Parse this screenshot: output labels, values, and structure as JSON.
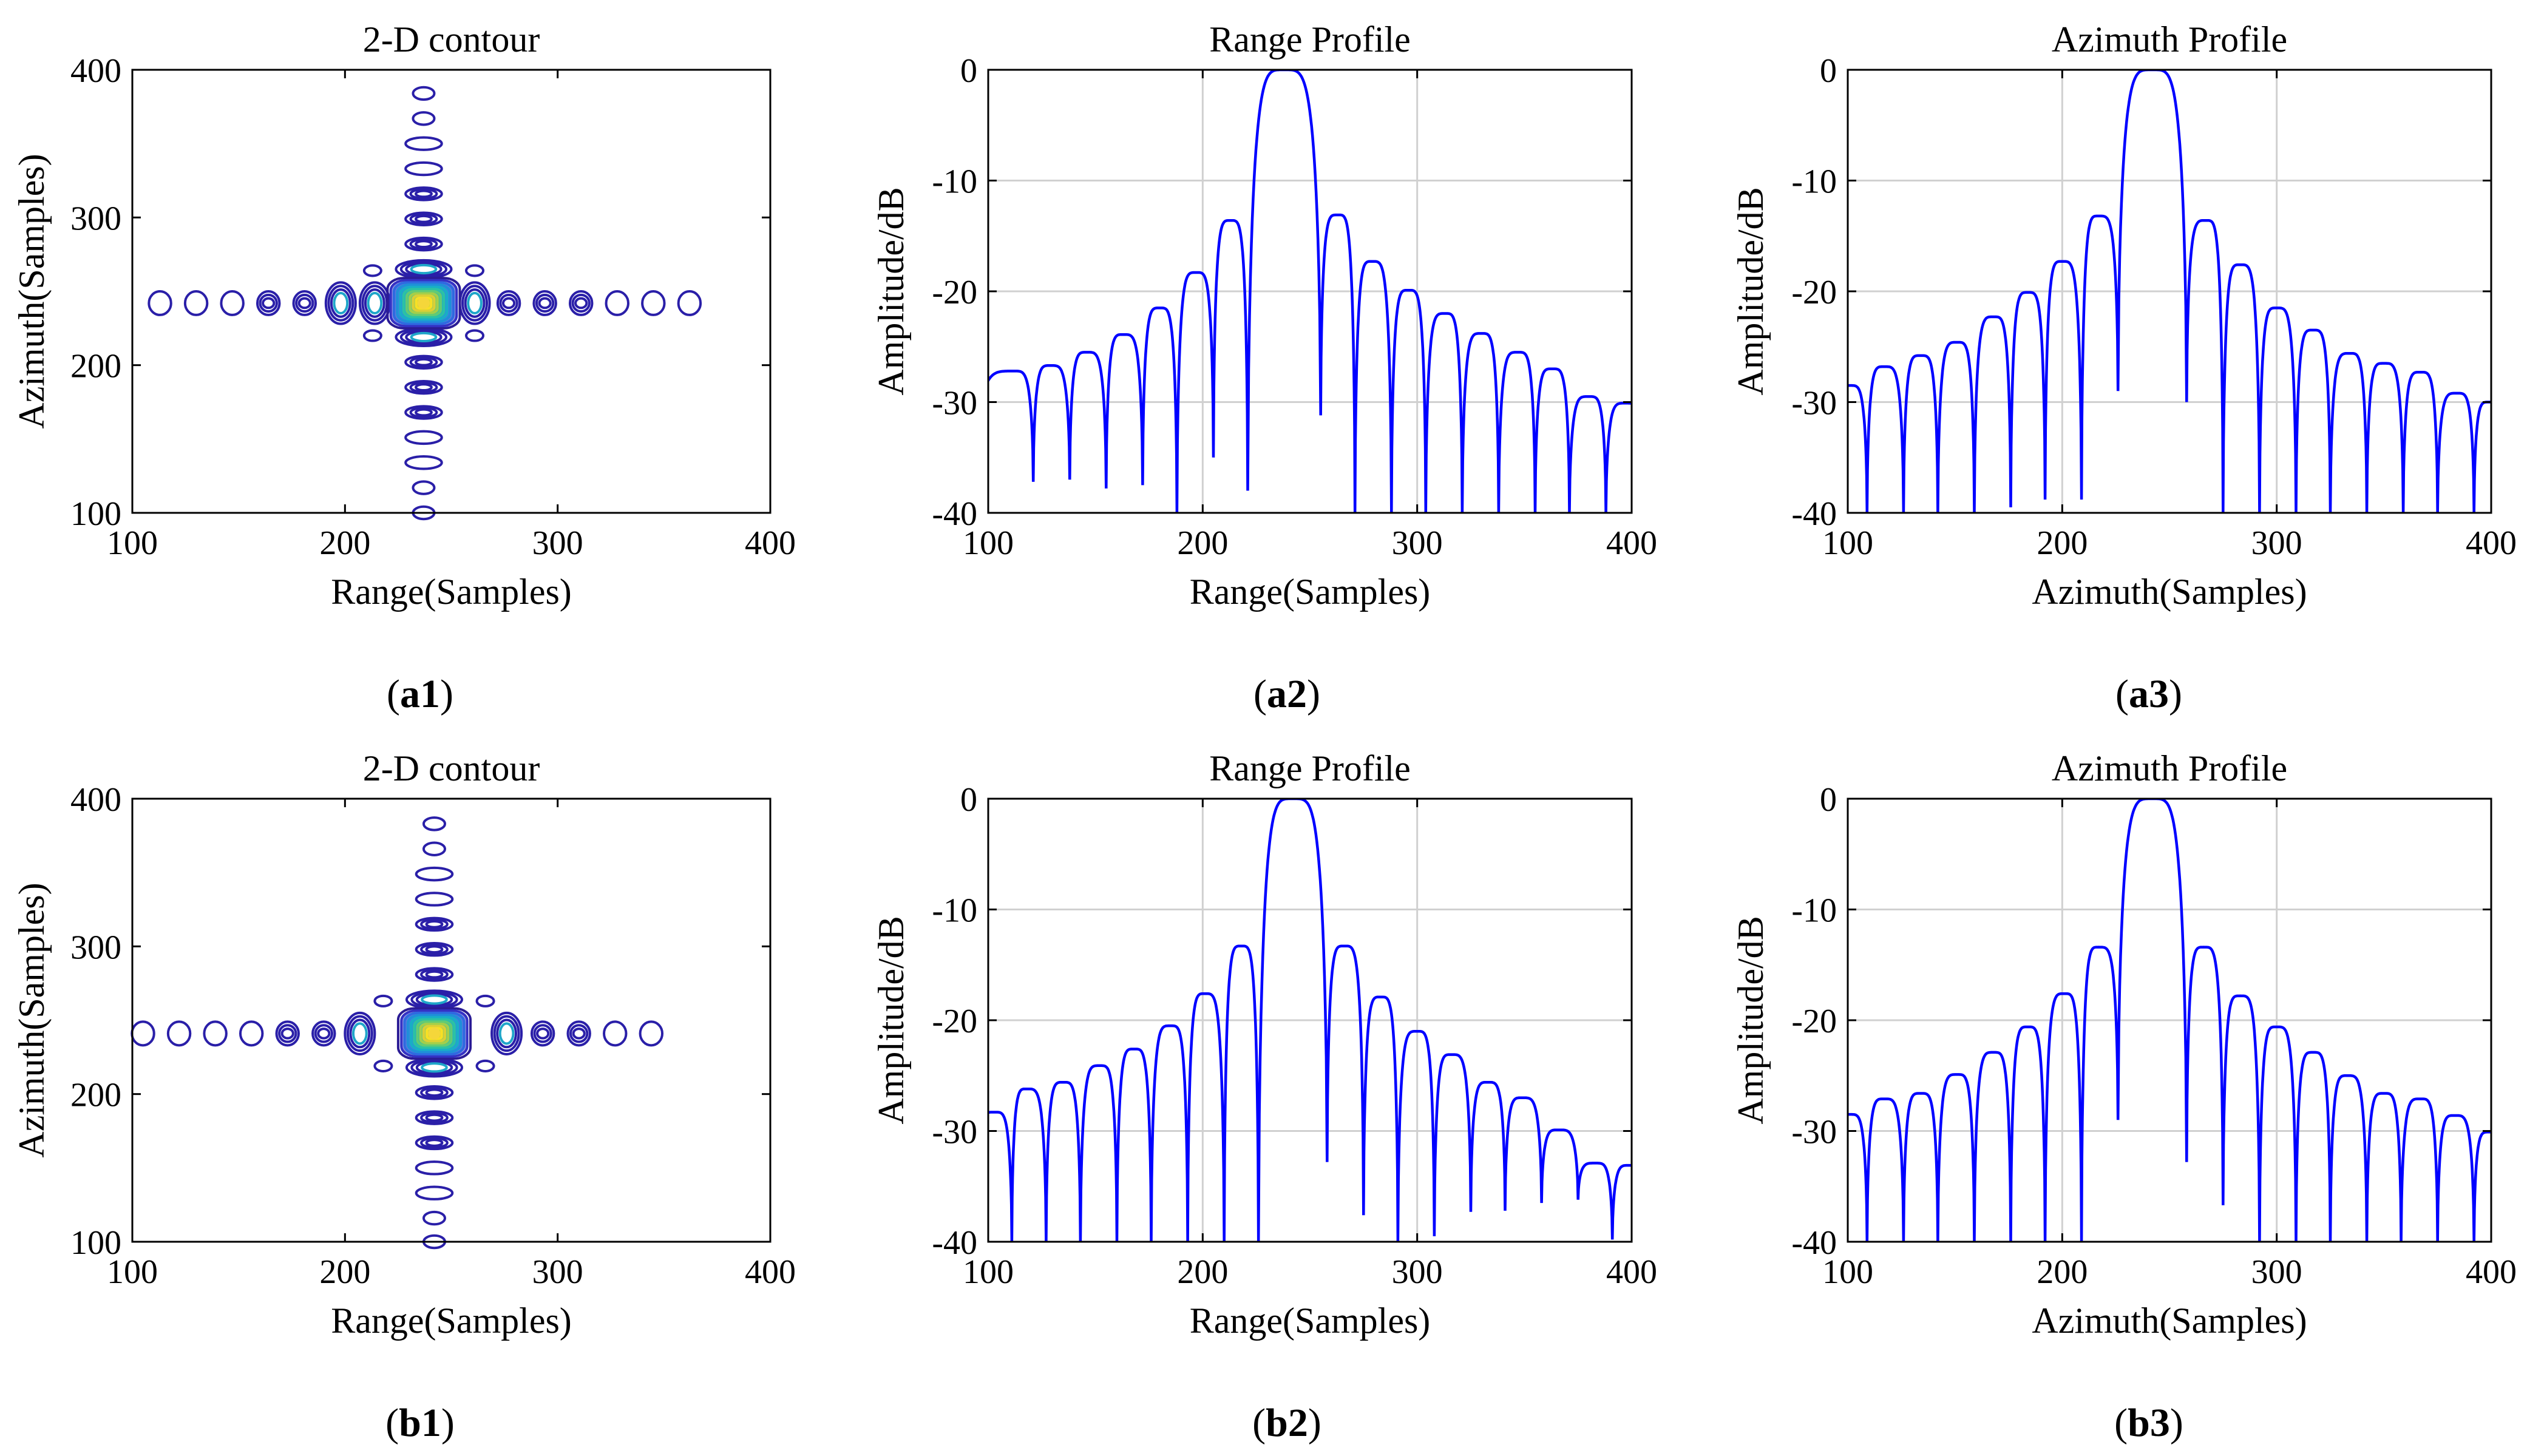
{
  "figure": {
    "panel_labels": [
      {
        "open": "(",
        "id": "a1",
        "close": ")"
      },
      {
        "open": "(",
        "id": "a2",
        "close": ")"
      },
      {
        "open": "(",
        "id": "a3",
        "close": ")"
      },
      {
        "open": "(",
        "id": "b1",
        "close": ")"
      },
      {
        "open": "(",
        "id": "b2",
        "close": ")"
      },
      {
        "open": "(",
        "id": "b3",
        "close": ")"
      }
    ]
  },
  "colors": {
    "line": "#0000ff",
    "contour_outer": "#2a1fa8",
    "contour_mid": "#1fa6c9",
    "contour_inner": "#5ec962",
    "contour_peak": "#f5d63a",
    "grid": "#d0d0d0",
    "axis": "#000000"
  },
  "chart_data": [
    {
      "id": "a1",
      "type": "contour",
      "title": "2-D contour",
      "xlabel": "Range(Samples)",
      "ylabel": "Azimuth(Samples)",
      "xlim": [
        100,
        400
      ],
      "ylim": [
        100,
        400
      ],
      "xticks": [
        100,
        200,
        300,
        400
      ],
      "yticks": [
        100,
        200,
        300,
        400
      ],
      "grid": false,
      "center": [
        237,
        242
      ],
      "range_lobes": [
        113,
        130,
        147,
        164,
        181,
        198,
        214,
        261,
        277,
        294,
        311,
        328,
        345,
        362
      ],
      "azimuth_lobes": [
        384,
        367,
        350,
        333,
        316,
        299,
        282,
        265,
        219,
        202,
        185,
        168,
        151,
        134,
        117,
        100
      ]
    },
    {
      "id": "a2",
      "type": "line",
      "title": "Range Profile",
      "xlabel": "Range(Samples)",
      "ylabel": "Amplitude/dB",
      "xlim": [
        100,
        400
      ],
      "ylim": [
        -40,
        0
      ],
      "xticks": [
        100,
        200,
        300,
        400
      ],
      "yticks": [
        0,
        -10,
        -20,
        -30,
        -40
      ],
      "grid": true,
      "main_lobe": {
        "center": 238,
        "nulls": [
          221,
          255
        ]
      },
      "side_lobes": [
        {
          "x": 112,
          "peak": -27.2
        },
        {
          "x": 129,
          "peak": -26.7
        },
        {
          "x": 146,
          "peak": -25.5
        },
        {
          "x": 163,
          "peak": -23.9
        },
        {
          "x": 180,
          "peak": -21.5
        },
        {
          "x": 197,
          "peak": -18.3
        },
        {
          "x": 213,
          "peak": -13.6
        },
        {
          "x": 263,
          "peak": -13.1
        },
        {
          "x": 279,
          "peak": -17.3
        },
        {
          "x": 296,
          "peak": -19.9
        },
        {
          "x": 313,
          "peak": -22.0
        },
        {
          "x": 330,
          "peak": -23.8
        },
        {
          "x": 347,
          "peak": -25.5
        },
        {
          "x": 363,
          "peak": -27.0
        },
        {
          "x": 380,
          "peak": -29.5
        },
        {
          "x": 397,
          "peak": -30.1
        }
      ],
      "nulls": [
        {
          "x": 121,
          "depth": -37.2
        },
        {
          "x": 138,
          "depth": -37.0
        },
        {
          "x": 155,
          "depth": -37.8
        },
        {
          "x": 172,
          "depth": -37.5
        },
        {
          "x": 188,
          "depth": -40
        },
        {
          "x": 205,
          "depth": -35.0
        },
        {
          "x": 221,
          "depth": -38.0
        },
        {
          "x": 255,
          "depth": -31.2
        },
        {
          "x": 271,
          "depth": -40
        },
        {
          "x": 288,
          "depth": -40
        },
        {
          "x": 304,
          "depth": -40
        },
        {
          "x": 321,
          "depth": -40
        },
        {
          "x": 338,
          "depth": -40
        },
        {
          "x": 355,
          "depth": -40
        },
        {
          "x": 371,
          "depth": -40
        },
        {
          "x": 388,
          "depth": -40
        }
      ],
      "series": [
        {
          "name": "Range Profile",
          "color": "#0000ff"
        }
      ]
    },
    {
      "id": "a3",
      "type": "line",
      "title": "Azimuth Profile",
      "xlabel": "Azimuth(Samples)",
      "ylabel": "Amplitude/dB",
      "xlim": [
        100,
        400
      ],
      "ylim": [
        -40,
        0
      ],
      "xticks": [
        100,
        200,
        300,
        400
      ],
      "yticks": [
        0,
        -10,
        -20,
        -30,
        -40
      ],
      "grid": true,
      "main_lobe": {
        "center": 242,
        "nulls": [
          226,
          258
        ]
      },
      "side_lobes": [
        {
          "x": 101,
          "peak": -28.5
        },
        {
          "x": 117,
          "peak": -26.8
        },
        {
          "x": 134,
          "peak": -25.8
        },
        {
          "x": 151,
          "peak": -24.6
        },
        {
          "x": 168,
          "peak": -22.3
        },
        {
          "x": 184,
          "peak": -20.1
        },
        {
          "x": 200,
          "peak": -17.3
        },
        {
          "x": 217,
          "peak": -13.2
        },
        {
          "x": 267,
          "peak": -13.6
        },
        {
          "x": 283,
          "peak": -17.6
        },
        {
          "x": 300,
          "peak": -21.5
        },
        {
          "x": 317,
          "peak": -23.5
        },
        {
          "x": 334,
          "peak": -25.6
        },
        {
          "x": 350,
          "peak": -26.5
        },
        {
          "x": 367,
          "peak": -27.3
        },
        {
          "x": 384,
          "peak": -29.2
        },
        {
          "x": 399,
          "peak": -30.0
        }
      ],
      "nulls": [
        {
          "x": 109,
          "depth": -40
        },
        {
          "x": 126,
          "depth": -40
        },
        {
          "x": 142,
          "depth": -40
        },
        {
          "x": 159,
          "depth": -40
        },
        {
          "x": 176,
          "depth": -39.5
        },
        {
          "x": 192,
          "depth": -38.8
        },
        {
          "x": 209,
          "depth": -38.8
        },
        {
          "x": 226,
          "depth": -29.0
        },
        {
          "x": 258,
          "depth": -30.0
        },
        {
          "x": 275,
          "depth": -40
        },
        {
          "x": 292,
          "depth": -40
        },
        {
          "x": 309,
          "depth": -40
        },
        {
          "x": 325,
          "depth": -40
        },
        {
          "x": 342,
          "depth": -40
        },
        {
          "x": 359,
          "depth": -40
        },
        {
          "x": 375,
          "depth": -40
        },
        {
          "x": 392,
          "depth": -40
        }
      ],
      "series": [
        {
          "name": "Azimuth Profile",
          "color": "#0000ff"
        }
      ]
    },
    {
      "id": "b1",
      "type": "contour",
      "title": "2-D contour",
      "xlabel": "Range(Samples)",
      "ylabel": "Azimuth(Samples)",
      "xlim": [
        100,
        400
      ],
      "ylim": [
        100,
        400
      ],
      "xticks": [
        100,
        200,
        300,
        400
      ],
      "yticks": [
        100,
        200,
        300,
        400
      ],
      "grid": false,
      "center": [
        242,
        241
      ],
      "range_lobes": [
        105,
        122,
        139,
        156,
        173,
        190,
        207,
        276,
        293,
        310,
        327,
        344
      ],
      "azimuth_lobes": [
        383,
        366,
        349,
        332,
        315,
        298,
        281,
        264,
        218,
        201,
        184,
        167,
        150,
        133,
        116,
        100
      ]
    },
    {
      "id": "b2",
      "type": "line",
      "title": "Range Profile",
      "xlabel": "Range(Samples)",
      "ylabel": "Amplitude/dB",
      "xlim": [
        100,
        400
      ],
      "ylim": [
        -40,
        0
      ],
      "xticks": [
        100,
        200,
        300,
        400
      ],
      "yticks": [
        0,
        -10,
        -20,
        -30,
        -40
      ],
      "grid": true,
      "main_lobe": {
        "center": 242,
        "nulls": [
          226,
          258
        ]
      },
      "side_lobes": [
        {
          "x": 103,
          "peak": -28.3
        },
        {
          "x": 118,
          "peak": -26.2
        },
        {
          "x": 135,
          "peak": -25.6
        },
        {
          "x": 152,
          "peak": -24.1
        },
        {
          "x": 168,
          "peak": -22.6
        },
        {
          "x": 185,
          "peak": -20.5
        },
        {
          "x": 201,
          "peak": -17.6
        },
        {
          "x": 218,
          "peak": -13.3
        },
        {
          "x": 266,
          "peak": -13.3
        },
        {
          "x": 283,
          "peak": -17.9
        },
        {
          "x": 300,
          "peak": -21.0
        },
        {
          "x": 316,
          "peak": -23.1
        },
        {
          "x": 333,
          "peak": -25.6
        },
        {
          "x": 349,
          "peak": -27.0
        },
        {
          "x": 366,
          "peak": -29.9
        },
        {
          "x": 383,
          "peak": -32.9
        },
        {
          "x": 399,
          "peak": -33.1
        }
      ],
      "nulls": [
        {
          "x": 111,
          "depth": -40
        },
        {
          "x": 127,
          "depth": -40
        },
        {
          "x": 143,
          "depth": -40
        },
        {
          "x": 160,
          "depth": -40
        },
        {
          "x": 176,
          "depth": -40
        },
        {
          "x": 193,
          "depth": -40
        },
        {
          "x": 210,
          "depth": -40
        },
        {
          "x": 226,
          "depth": -40
        },
        {
          "x": 258,
          "depth": -32.8
        },
        {
          "x": 275,
          "depth": -37.6
        },
        {
          "x": 291,
          "depth": -40
        },
        {
          "x": 308,
          "depth": -39.5
        },
        {
          "x": 325,
          "depth": -37.3
        },
        {
          "x": 341,
          "depth": -37.2
        },
        {
          "x": 358,
          "depth": -36.5
        },
        {
          "x": 375,
          "depth": -36.2
        },
        {
          "x": 391,
          "depth": -39.8
        }
      ],
      "series": [
        {
          "name": "Range Profile",
          "color": "#0000ff"
        }
      ]
    },
    {
      "id": "b3",
      "type": "line",
      "title": "Azimuth Profile",
      "xlabel": "Azimuth(Samples)",
      "ylabel": "Amplitude/dB",
      "xlim": [
        100,
        400
      ],
      "ylim": [
        -40,
        0
      ],
      "xticks": [
        100,
        200,
        300,
        400
      ],
      "yticks": [
        0,
        -10,
        -20,
        -30,
        -40
      ],
      "grid": true,
      "main_lobe": {
        "center": 242,
        "nulls": [
          226,
          258
        ]
      },
      "side_lobes": [
        {
          "x": 101,
          "peak": -28.5
        },
        {
          "x": 117,
          "peak": -27.1
        },
        {
          "x": 134,
          "peak": -26.6
        },
        {
          "x": 151,
          "peak": -24.9
        },
        {
          "x": 168,
          "peak": -22.9
        },
        {
          "x": 184,
          "peak": -20.6
        },
        {
          "x": 201,
          "peak": -17.6
        },
        {
          "x": 217,
          "peak": -13.4
        },
        {
          "x": 266,
          "peak": -13.4
        },
        {
          "x": 283,
          "peak": -17.8
        },
        {
          "x": 300,
          "peak": -20.6
        },
        {
          "x": 317,
          "peak": -22.9
        },
        {
          "x": 333,
          "peak": -25.0
        },
        {
          "x": 350,
          "peak": -26.6
        },
        {
          "x": 367,
          "peak": -27.1
        },
        {
          "x": 383,
          "peak": -28.6
        },
        {
          "x": 399,
          "peak": -30.1
        }
      ],
      "nulls": [
        {
          "x": 109,
          "depth": -40
        },
        {
          "x": 126,
          "depth": -40
        },
        {
          "x": 142,
          "depth": -40
        },
        {
          "x": 159,
          "depth": -40
        },
        {
          "x": 176,
          "depth": -40
        },
        {
          "x": 192,
          "depth": -40
        },
        {
          "x": 209,
          "depth": -40
        },
        {
          "x": 226,
          "depth": -29.0
        },
        {
          "x": 258,
          "depth": -32.8
        },
        {
          "x": 275,
          "depth": -36.7
        },
        {
          "x": 292,
          "depth": -40
        },
        {
          "x": 309,
          "depth": -40
        },
        {
          "x": 325,
          "depth": -40
        },
        {
          "x": 342,
          "depth": -40
        },
        {
          "x": 358,
          "depth": -40
        },
        {
          "x": 375,
          "depth": -40
        },
        {
          "x": 392,
          "depth": -40
        }
      ],
      "series": [
        {
          "name": "Azimuth Profile",
          "color": "#0000ff"
        }
      ]
    }
  ]
}
